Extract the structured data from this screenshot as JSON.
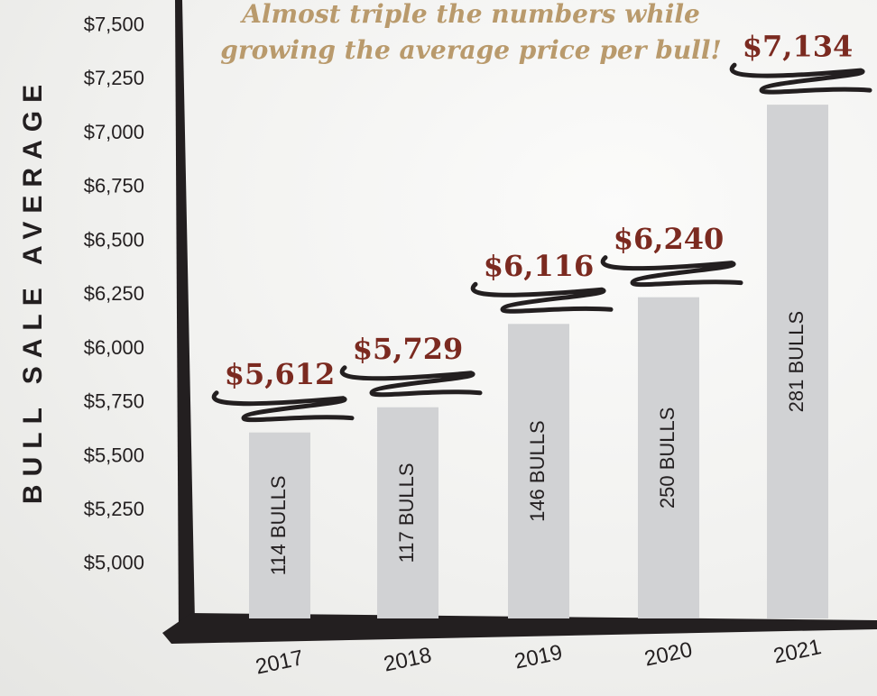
{
  "chart_data": {
    "type": "bar",
    "annotation": "Almost triple the numbers while growing the average price per bull!",
    "y_label": "BULL SALE AVERAGE",
    "categories": [
      "2017",
      "2018",
      "2019",
      "2020",
      "2021"
    ],
    "values": [
      5612,
      5729,
      6116,
      6240,
      7134
    ],
    "value_labels": [
      "$5,612",
      "$5,729",
      "$6,116",
      "$6,240",
      "$7,134"
    ],
    "bar_texts": [
      "114 BULLS",
      "117 BULLS",
      "146 BULLS",
      "250 BULLS",
      "281 BULLS"
    ],
    "color": "#d1d2d4",
    "ylim": [
      4740,
      7620
    ],
    "yticks": [
      {
        "value": 5000,
        "label": "$5,000"
      },
      {
        "value": 5250,
        "label": "$5,250"
      },
      {
        "value": 5500,
        "label": "$5,500"
      },
      {
        "value": 5750,
        "label": "$5,750"
      },
      {
        "value": 6000,
        "label": "$6,000"
      },
      {
        "value": 6250,
        "label": "$6,250"
      },
      {
        "value": 6500,
        "label": "$6,500"
      },
      {
        "value": 6750,
        "label": "$6,750"
      },
      {
        "value": 7000,
        "label": "$7,000"
      },
      {
        "value": 7250,
        "label": "$7,250"
      },
      {
        "value": 7500,
        "label": "$7,500"
      }
    ],
    "grid": false
  }
}
